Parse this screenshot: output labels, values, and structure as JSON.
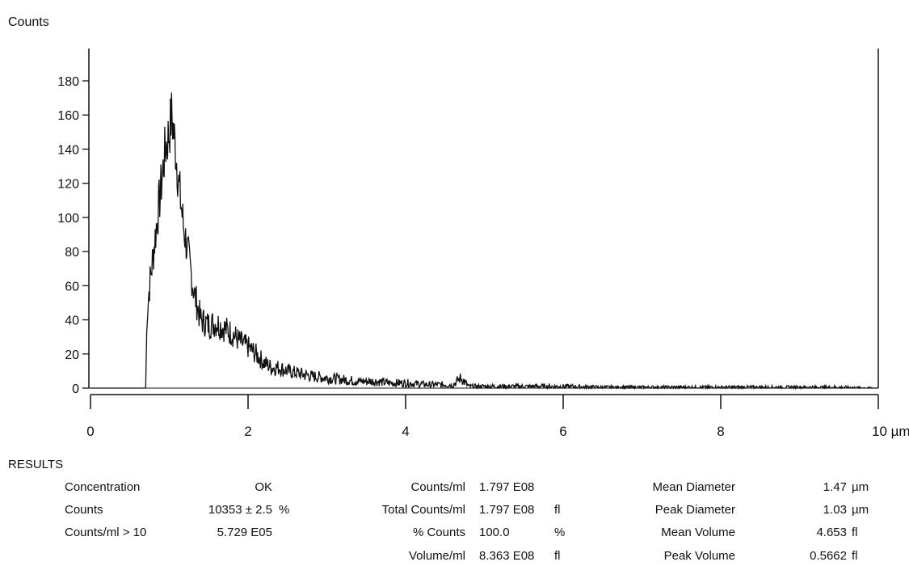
{
  "chart_data": {
    "type": "line",
    "title": "",
    "ylabel": "Counts",
    "xunit": "µm",
    "xlim": [
      0,
      10
    ],
    "ylim": [
      0,
      180
    ],
    "xticks": [
      0,
      2,
      4,
      6,
      8,
      10
    ],
    "xtick_labels": [
      "0",
      "2",
      "4",
      "6",
      "8",
      "10 µm"
    ],
    "yticks": [
      0,
      20,
      40,
      60,
      80,
      100,
      120,
      140,
      160,
      180
    ],
    "grid": false,
    "series": [
      {
        "name": "",
        "x": [
          0,
          0.7,
          0.72,
          0.75,
          0.8,
          0.85,
          0.9,
          0.95,
          1.0,
          1.03,
          1.08,
          1.12,
          1.18,
          1.25,
          1.32,
          1.4,
          1.5,
          1.6,
          1.7,
          1.8,
          1.9,
          2.0,
          2.1,
          2.2,
          2.3,
          2.4,
          2.5,
          2.6,
          2.8,
          3.0,
          3.2,
          3.4,
          3.6,
          3.8,
          4.0,
          4.3,
          4.6,
          4.7,
          4.8,
          5.0,
          5.5,
          6.0,
          6.5,
          7.0,
          7.5,
          8.0,
          8.5,
          9.0,
          9.5,
          10.0
        ],
        "y": [
          0,
          0,
          45,
          60,
          80,
          100,
          120,
          140,
          150,
          160,
          140,
          120,
          95,
          75,
          55,
          40,
          37,
          38,
          35,
          32,
          27,
          24,
          20,
          15,
          12,
          12,
          10,
          9,
          7,
          6,
          5,
          4,
          4,
          3,
          3,
          2,
          2,
          6,
          1,
          1,
          1,
          1,
          0.5,
          0.5,
          0.5,
          0.5,
          0.5,
          0.5,
          0.5,
          0
        ]
      }
    ]
  },
  "results": {
    "title": "RESULTS",
    "col1": [
      {
        "label": "Concentration",
        "value": "OK",
        "unit": ""
      },
      {
        "label": "Counts",
        "value": "10353 ±  2.5",
        "unit": "%"
      },
      {
        "label": "Counts/ml > 10",
        "value": "5.729 E05",
        "unit": ""
      }
    ],
    "col2": [
      {
        "label": "Counts/ml",
        "value": "1.797 E08",
        "unit": ""
      },
      {
        "label": "Total Counts/ml",
        "value": "1.797 E08",
        "unit": "fl"
      },
      {
        "label": "% Counts",
        "value": "100.0",
        "unit": "%"
      },
      {
        "label": "Volume/ml",
        "value": "8.363 E08",
        "unit": "fl"
      }
    ],
    "col3": [
      {
        "label": "Mean Diameter",
        "value": "1.47",
        "unit": "µm"
      },
      {
        "label": "Peak Diameter",
        "value": "1.03",
        "unit": "µm"
      },
      {
        "label": "Mean Volume",
        "value": "4.653",
        "unit": "fl"
      },
      {
        "label": "Peak Volume",
        "value": "0.5662",
        "unit": "fl"
      }
    ]
  }
}
